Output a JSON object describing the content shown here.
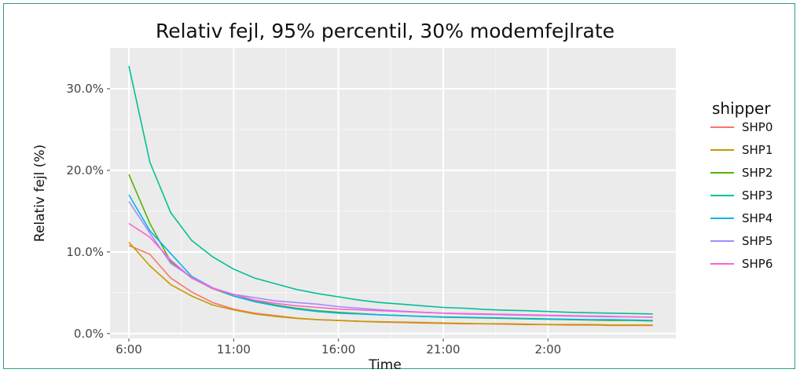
{
  "chart_data": {
    "type": "line",
    "title": "Relativ fejl, 95% percentil, 30% modemfejlrate",
    "xlabel": "Time",
    "ylabel": "Relativ fejl (%)",
    "x": [
      6,
      7,
      8,
      9,
      10,
      11,
      12,
      13,
      14,
      15,
      16,
      17,
      18,
      19,
      20,
      21,
      22,
      23,
      24,
      25,
      26,
      27,
      28,
      29,
      30,
      31
    ],
    "xticks": [
      {
        "value": 6,
        "label": "6:00"
      },
      {
        "value": 11,
        "label": "11:00"
      },
      {
        "value": 16,
        "label": "16:00"
      },
      {
        "value": 21,
        "label": "21:00"
      },
      {
        "value": 26,
        "label": "2:00"
      }
    ],
    "xlim": [
      5.1,
      32.1
    ],
    "ylim": [
      -0.6,
      35.0
    ],
    "yticks": [
      {
        "value": 0,
        "label": "0.0%"
      },
      {
        "value": 10,
        "label": "10.0%"
      },
      {
        "value": 20,
        "label": "20.0%"
      },
      {
        "value": 30,
        "label": "30.0%"
      }
    ],
    "grid": true,
    "legend_title": "shipper",
    "legend_position": "right",
    "series": [
      {
        "name": "SHP0",
        "color": "#F8766D",
        "values": [
          10.8,
          9.7,
          6.8,
          5.1,
          3.8,
          3.0,
          2.5,
          2.2,
          1.9,
          1.7,
          1.6,
          1.5,
          1.4,
          1.35,
          1.3,
          1.25,
          1.2,
          1.2,
          1.15,
          1.1,
          1.1,
          1.05,
          1.05,
          1.0,
          1.0,
          1.0
        ]
      },
      {
        "name": "SHP1",
        "color": "#C49A00",
        "values": [
          11.2,
          8.3,
          6.0,
          4.6,
          3.5,
          2.9,
          2.4,
          2.1,
          1.85,
          1.7,
          1.6,
          1.5,
          1.45,
          1.4,
          1.35,
          1.3,
          1.25,
          1.2,
          1.2,
          1.15,
          1.1,
          1.1,
          1.1,
          1.05,
          1.05,
          1.05
        ]
      },
      {
        "name": "SHP2",
        "color": "#53B400",
        "values": [
          19.5,
          13.5,
          8.8,
          6.8,
          5.5,
          4.6,
          4.0,
          3.5,
          3.1,
          2.8,
          2.6,
          2.45,
          2.3,
          2.2,
          2.1,
          2.0,
          1.95,
          1.9,
          1.85,
          1.8,
          1.75,
          1.7,
          1.65,
          1.6,
          1.6,
          1.55
        ]
      },
      {
        "name": "SHP3",
        "color": "#00C094",
        "values": [
          32.8,
          21.0,
          14.8,
          11.4,
          9.4,
          7.9,
          6.8,
          6.1,
          5.4,
          4.9,
          4.5,
          4.1,
          3.8,
          3.6,
          3.4,
          3.2,
          3.1,
          2.95,
          2.85,
          2.8,
          2.7,
          2.6,
          2.55,
          2.5,
          2.45,
          2.4
        ]
      },
      {
        "name": "SHP4",
        "color": "#00B6EB",
        "values": [
          17.0,
          12.6,
          9.8,
          7.0,
          5.6,
          4.6,
          3.9,
          3.4,
          3.0,
          2.7,
          2.5,
          2.4,
          2.3,
          2.2,
          2.1,
          2.05,
          2.0,
          1.95,
          1.9,
          1.85,
          1.8,
          1.75,
          1.7,
          1.7,
          1.65,
          1.6
        ]
      },
      {
        "name": "SHP5",
        "color": "#A58AFF",
        "values": [
          16.2,
          12.3,
          8.6,
          6.9,
          5.6,
          4.8,
          4.4,
          4.0,
          3.8,
          3.6,
          3.3,
          3.1,
          2.9,
          2.75,
          2.6,
          2.5,
          2.4,
          2.35,
          2.3,
          2.25,
          2.2,
          2.15,
          2.1,
          2.05,
          2.05,
          2.0
        ]
      },
      {
        "name": "SHP6",
        "color": "#FB61D7",
        "values": [
          13.5,
          11.8,
          9.0,
          6.8,
          5.5,
          4.8,
          4.1,
          3.7,
          3.4,
          3.2,
          3.0,
          2.9,
          2.8,
          2.7,
          2.6,
          2.5,
          2.45,
          2.4,
          2.35,
          2.3,
          2.25,
          2.2,
          2.15,
          2.1,
          2.05,
          2.0
        ]
      }
    ]
  }
}
